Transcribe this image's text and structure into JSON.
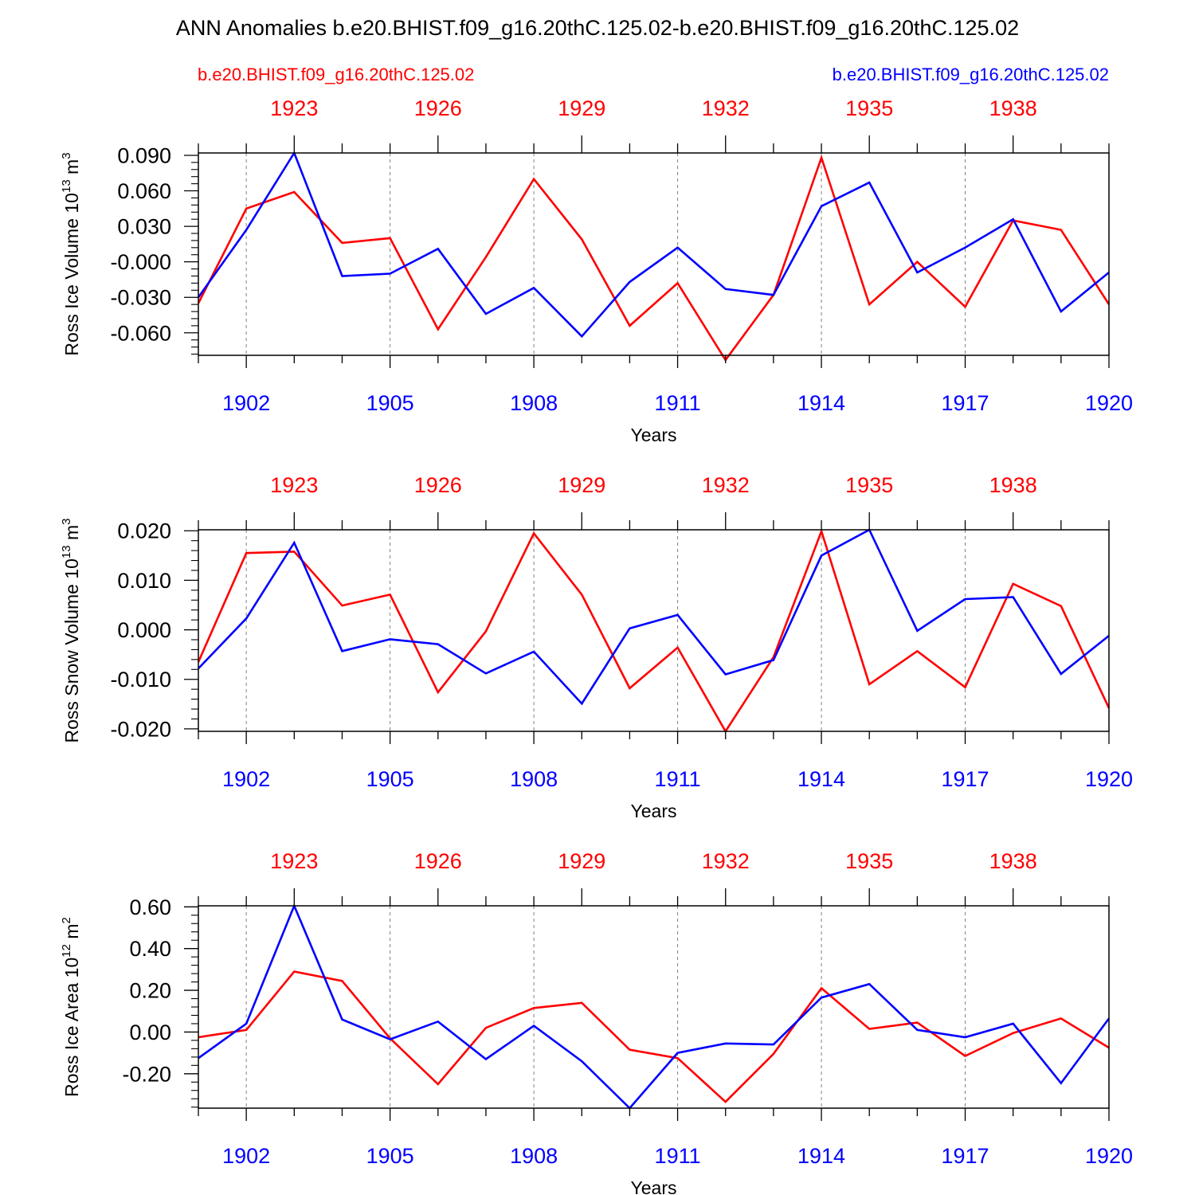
{
  "title": "ANN Anomalies b.e20.BHIST.f09_g16.20thC.125.02-b.e20.BHIST.f09_g16.20thC.125.02",
  "legend": {
    "red_case": "b.e20.BHIST.f09_g16.20thC.125.02",
    "blue_case": "b.e20.BHIST.f09_g16.20thC.125.02"
  },
  "colors": {
    "red": "#ff0000",
    "blue": "#0000ff",
    "axis": "#000000",
    "grid": "#808080"
  },
  "chart_data": [
    {
      "type": "line",
      "ylabel": "Ross Ice Volume",
      "ylabel_unit": "10",
      "ylabel_exp": "13",
      "ylabel_unit2": "m",
      "ylabel_exp2": "3",
      "xlabel": "Years",
      "ylim": [
        -0.079,
        0.092
      ],
      "yticks": [
        0.09,
        0.06,
        0.03,
        0.0,
        -0.03,
        -0.06
      ],
      "ytick_labels": [
        "0.090",
        "0.060",
        "0.030",
        "-0.000",
        "-0.030",
        "-0.060"
      ],
      "xlim": [
        1901,
        1920
      ],
      "bottom_ticks": [
        1902,
        1905,
        1908,
        1911,
        1914,
        1917,
        1920
      ],
      "bottom_tick_labels": [
        "1902",
        "1905",
        "1908",
        "1911",
        "1914",
        "1917",
        "1920"
      ],
      "top_ticks": [
        1923,
        1926,
        1929,
        1932,
        1935,
        1938
      ],
      "top_tick_labels": [
        "1923",
        "1926",
        "1929",
        "1932",
        "1935",
        "1938"
      ],
      "top_offset": 20,
      "series": [
        {
          "name": "red",
          "x": [
            1901,
            1902,
            1903,
            1904,
            1905,
            1906,
            1907,
            1908,
            1909,
            1910,
            1911,
            1912,
            1913,
            1914,
            1915,
            1916,
            1917,
            1918,
            1919,
            1920
          ],
          "values": [
            -0.035,
            0.045,
            0.059,
            0.016,
            0.02,
            -0.057,
            0.004,
            0.07,
            0.019,
            -0.054,
            -0.018,
            -0.083,
            -0.028,
            0.088,
            -0.036,
            0.0,
            -0.038,
            0.035,
            0.027,
            -0.036
          ]
        },
        {
          "name": "blue",
          "x": [
            1901,
            1902,
            1903,
            1904,
            1905,
            1906,
            1907,
            1908,
            1909,
            1910,
            1911,
            1912,
            1913,
            1914,
            1915,
            1916,
            1917,
            1918,
            1919,
            1920
          ],
          "values": [
            -0.03,
            0.027,
            0.092,
            -0.012,
            -0.01,
            0.011,
            -0.044,
            -0.022,
            -0.063,
            -0.017,
            0.012,
            -0.023,
            -0.028,
            0.047,
            0.067,
            -0.009,
            0.012,
            0.036,
            -0.042,
            -0.009
          ]
        }
      ]
    },
    {
      "type": "line",
      "ylabel": "Ross Snow Volume",
      "ylabel_unit": "10",
      "ylabel_exp": "13",
      "ylabel_unit2": "m",
      "ylabel_exp2": "3",
      "xlabel": "Years",
      "ylim": [
        -0.0205,
        0.0202
      ],
      "yticks": [
        0.02,
        0.01,
        0.0,
        -0.01,
        -0.02
      ],
      "ytick_labels": [
        "0.020",
        "0.010",
        "0.000",
        "-0.010",
        "-0.020"
      ],
      "xlim": [
        1901,
        1920
      ],
      "bottom_ticks": [
        1902,
        1905,
        1908,
        1911,
        1914,
        1917,
        1920
      ],
      "bottom_tick_labels": [
        "1902",
        "1905",
        "1908",
        "1911",
        "1914",
        "1917",
        "1920"
      ],
      "top_ticks": [
        1923,
        1926,
        1929,
        1932,
        1935,
        1938
      ],
      "top_tick_labels": [
        "1923",
        "1926",
        "1929",
        "1932",
        "1935",
        "1938"
      ],
      "top_offset": 20,
      "series": [
        {
          "name": "red",
          "x": [
            1901,
            1902,
            1903,
            1904,
            1905,
            1906,
            1907,
            1908,
            1909,
            1910,
            1911,
            1912,
            1913,
            1914,
            1915,
            1916,
            1917,
            1918,
            1919,
            1920
          ],
          "values": [
            -0.0065,
            0.0155,
            0.0158,
            0.0049,
            0.0071,
            -0.0126,
            -0.0003,
            0.0195,
            0.0071,
            -0.0118,
            -0.0036,
            -0.0205,
            -0.0055,
            0.0199,
            -0.011,
            -0.0043,
            -0.0116,
            0.0093,
            0.0048,
            -0.0158
          ]
        },
        {
          "name": "blue",
          "x": [
            1901,
            1902,
            1903,
            1904,
            1905,
            1906,
            1907,
            1908,
            1909,
            1910,
            1911,
            1912,
            1913,
            1914,
            1915,
            1916,
            1917,
            1918,
            1919,
            1920
          ],
          "values": [
            -0.0078,
            0.0023,
            0.0176,
            -0.0043,
            -0.0019,
            -0.0029,
            -0.0088,
            -0.0044,
            -0.0149,
            0.0003,
            0.003,
            -0.009,
            -0.0061,
            0.015,
            0.0202,
            -0.0002,
            0.0062,
            0.0066,
            -0.0089,
            -0.0012
          ]
        }
      ]
    },
    {
      "type": "line",
      "ylabel": "Ross Ice Area",
      "ylabel_unit": "10",
      "ylabel_exp": "12",
      "ylabel_unit2": "m",
      "ylabel_exp2": "2",
      "xlabel": "Years",
      "ylim": [
        -0.365,
        0.605
      ],
      "yticks": [
        0.6,
        0.4,
        0.2,
        0.0,
        -0.2
      ],
      "ytick_labels": [
        "0.60",
        "0.40",
        "0.20",
        "0.00",
        "-0.20"
      ],
      "xlim": [
        1901,
        1920
      ],
      "bottom_ticks": [
        1902,
        1905,
        1908,
        1911,
        1914,
        1917,
        1920
      ],
      "bottom_tick_labels": [
        "1902",
        "1905",
        "1908",
        "1911",
        "1914",
        "1917",
        "1920"
      ],
      "top_ticks": [
        1923,
        1926,
        1929,
        1932,
        1935,
        1938
      ],
      "top_tick_labels": [
        "1923",
        "1926",
        "1929",
        "1932",
        "1935",
        "1938"
      ],
      "top_offset": 20,
      "series": [
        {
          "name": "red",
          "x": [
            1901,
            1902,
            1903,
            1904,
            1905,
            1906,
            1907,
            1908,
            1909,
            1910,
            1911,
            1912,
            1913,
            1914,
            1915,
            1916,
            1917,
            1918,
            1919,
            1920
          ],
          "values": [
            -0.025,
            0.01,
            0.29,
            0.245,
            -0.03,
            -0.25,
            0.02,
            0.115,
            0.14,
            -0.085,
            -0.125,
            -0.335,
            -0.105,
            0.21,
            0.015,
            0.045,
            -0.115,
            -0.005,
            0.065,
            -0.075
          ]
        },
        {
          "name": "blue",
          "x": [
            1901,
            1902,
            1903,
            1904,
            1905,
            1906,
            1907,
            1908,
            1909,
            1910,
            1911,
            1912,
            1913,
            1914,
            1915,
            1916,
            1917,
            1918,
            1919,
            1920
          ],
          "values": [
            -0.125,
            0.04,
            0.605,
            0.06,
            -0.035,
            0.05,
            -0.13,
            0.03,
            -0.14,
            -0.365,
            -0.1,
            -0.055,
            -0.06,
            0.165,
            0.23,
            0.01,
            -0.025,
            0.04,
            -0.245,
            0.065
          ]
        }
      ]
    }
  ]
}
